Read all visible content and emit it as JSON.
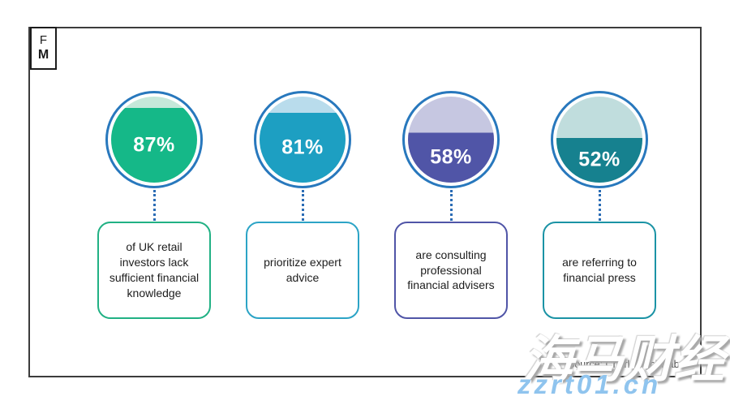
{
  "logo": {
    "line1": "F",
    "line2": "M"
  },
  "colors": {
    "ring": "#2878bd",
    "connector": "#2b6cb5",
    "frame_border": "#3c3c3c"
  },
  "stats": [
    {
      "pct": 87,
      "label": "87%",
      "description": "of UK retail investors lack sufficient financial knowledge",
      "fill_color": "#15b888",
      "empty_color": "#c5e8da",
      "box_border_color": "#21b184"
    },
    {
      "pct": 81,
      "label": "81%",
      "description": "prioritize expert advice",
      "fill_color": "#1d9fc2",
      "empty_color": "#b9dcec",
      "box_border_color": "#2ca4c6"
    },
    {
      "pct": 58,
      "label": "58%",
      "description": "are consulting professional financial advisers",
      "fill_color": "#5055a7",
      "empty_color": "#c6c7e1",
      "box_border_color": "#5055a7"
    },
    {
      "pct": 52,
      "label": "52%",
      "description": "are referring to financial press",
      "fill_color": "#16818f",
      "empty_color": "#c0dddd",
      "box_border_color": "#1b93a5"
    }
  ],
  "source": {
    "text": "Source: Charles Schwab"
  },
  "watermark": {
    "cjk": "海马财经",
    "domain": "zzrt01.cn",
    "domain_color": "#8fc4ee"
  },
  "chart_data": {
    "type": "pie",
    "variant": "filled-circle-percentage",
    "categories": [
      "of UK retail investors lack sufficient financial knowledge",
      "prioritize expert advice",
      "are consulting professional financial advisers",
      "are referring to financial press"
    ],
    "values": [
      87,
      81,
      58,
      52
    ],
    "value_labels": [
      "87%",
      "81%",
      "58%",
      "52%"
    ],
    "title": "",
    "source": "Source: Charles Schwab",
    "legend": false,
    "notes": "Four circles filled bottom-up proportionally to each percentage; label centered in filled area; dotted connector to a rounded description box below each circle."
  }
}
